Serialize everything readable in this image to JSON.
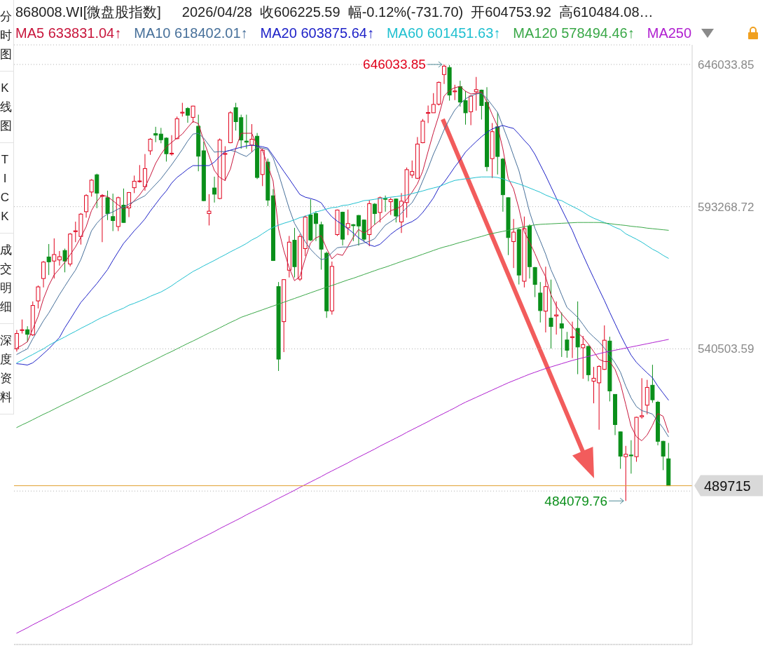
{
  "chart_data": {
    "type": "candlestick",
    "title": "868008.WI[微盘股指数]",
    "subtitle": "2026/04/28  收606225.59  幅-0.12%(-731.70)  开604753.92  高610484.08…",
    "categories": [
      null,
      null,
      null,
      null,
      null,
      null,
      null,
      null,
      null,
      null,
      null,
      null,
      null,
      null,
      null,
      null,
      null,
      null,
      null,
      null,
      null,
      null,
      null,
      null,
      null,
      null,
      null,
      null,
      null,
      null,
      null,
      null,
      null,
      null,
      null,
      null,
      null,
      null,
      null,
      null,
      null,
      null,
      null,
      null,
      null,
      null,
      null,
      null,
      null,
      null,
      null,
      null,
      null,
      null,
      null,
      null,
      null,
      null,
      null,
      null,
      null,
      null,
      null,
      null,
      null,
      null,
      null,
      null,
      null,
      null,
      null,
      null,
      null,
      null,
      null,
      null,
      null,
      null,
      null,
      null,
      null,
      null,
      null,
      null,
      null,
      null,
      null,
      null,
      null,
      null,
      null,
      null,
      null,
      null,
      null,
      null,
      null,
      null,
      null,
      null,
      null,
      null,
      null,
      null,
      null,
      null,
      null,
      null,
      null,
      null,
      null,
      null,
      null,
      null,
      null,
      null,
      null,
      null,
      null,
      null,
      null,
      null,
      null
    ],
    "ohlc": [
      [
        540500,
        547500,
        539500,
        546200
      ],
      [
        547300,
        551400,
        546200,
        547600
      ],
      [
        547600,
        548900,
        543100,
        545900
      ],
      [
        545700,
        558100,
        545300,
        556600
      ],
      [
        558300,
        564000,
        555500,
        563500
      ],
      [
        566600,
        573100,
        563300,
        572700
      ],
      [
        574600,
        579400,
        567900,
        572800
      ],
      [
        573100,
        581500,
        566600,
        575500
      ],
      [
        573500,
        576800,
        571400,
        574700
      ],
      [
        577000,
        577700,
        568900,
        573100
      ],
      [
        572000,
        583500,
        571100,
        583100
      ],
      [
        584000,
        587700,
        580100,
        584300
      ],
      [
        582200,
        590900,
        579200,
        590500
      ],
      [
        591400,
        597900,
        589200,
        597400
      ],
      [
        598700,
        603500,
        597000,
        603100
      ],
      [
        605100,
        605500,
        592700,
        598300
      ],
      [
        597100,
        597900,
        580100,
        597400
      ],
      [
        596600,
        599200,
        588300,
        590700
      ],
      [
        589600,
        598100,
        584200,
        588100
      ],
      [
        585900,
        597000,
        584200,
        596600
      ],
      [
        593800,
        600000,
        587300,
        587400
      ],
      [
        592800,
        598700,
        589400,
        598500
      ],
      [
        600300,
        604800,
        598300,
        602700
      ],
      [
        602600,
        608700,
        602200,
        602800
      ],
      [
        600700,
        612800,
        599200,
        607400
      ],
      [
        614000,
        618700,
        612500,
        618300
      ],
      [
        620400,
        622900,
        617200,
        619800
      ],
      [
        620200,
        622500,
        616800,
        618100
      ],
      [
        618700,
        619000,
        610000,
        612900
      ],
      [
        612800,
        619800,
        612200,
        613100
      ],
      [
        618500,
        626700,
        618300,
        625900
      ],
      [
        628000,
        631800,
        626700,
        628300
      ],
      [
        629700,
        630200,
        624400,
        627200
      ],
      [
        626400,
        630700,
        624400,
        630600
      ],
      [
        623100,
        627400,
        606400,
        612000
      ],
      [
        614000,
        617400,
        595300,
        595500
      ],
      [
        590700,
        597900,
        586300,
        591600
      ],
      [
        600200,
        604400,
        594800,
        597900
      ],
      [
        596300,
        618600,
        596000,
        618000
      ],
      [
        612700,
        615700,
        602800,
        613000
      ],
      [
        617000,
        628700,
        616800,
        628100
      ],
      [
        630000,
        631800,
        621500,
        624800
      ],
      [
        626300,
        627400,
        614800,
        618000
      ],
      [
        617600,
        627400,
        614800,
        617200
      ],
      [
        616100,
        623900,
        613500,
        618300
      ],
      [
        619400,
        620600,
        603500,
        604100
      ],
      [
        605200,
        614800,
        600900,
        614200
      ],
      [
        609800,
        611100,
        593500,
        595700
      ],
      [
        597300,
        599800,
        573100,
        573300
      ],
      [
        563600,
        565300,
        532300,
        536700
      ],
      [
        550600,
        566300,
        539300,
        566200
      ],
      [
        569700,
        582400,
        567000,
        580100
      ],
      [
        580800,
        585400,
        567000,
        571000
      ],
      [
        566400,
        583100,
        565700,
        582200
      ],
      [
        577700,
        590000,
        574900,
        589400
      ],
      [
        590200,
        596000,
        580500,
        580900
      ],
      [
        590700,
        591600,
        580500,
        587000
      ],
      [
        586600,
        587700,
        569900,
        577500
      ],
      [
        576000,
        576600,
        552000,
        554600
      ],
      [
        554600,
        572900,
        553200,
        571100
      ],
      [
        582900,
        592200,
        582400,
        592000
      ],
      [
        591200,
        591400,
        578900,
        581200
      ],
      [
        585400,
        592200,
        582700,
        587000
      ],
      [
        586600,
        586800,
        580500,
        586200
      ],
      [
        590000,
        590200,
        578800,
        586100
      ],
      [
        588300,
        588500,
        580300,
        581200
      ],
      [
        582900,
        595700,
        578600,
        594400
      ],
      [
        594200,
        594600,
        586600,
        590700
      ],
      [
        591100,
        597000,
        587400,
        596600
      ],
      [
        596300,
        597400,
        591400,
        596000
      ],
      [
        595100,
        596600,
        590200,
        595900
      ],
      [
        596100,
        596300,
        587400,
        589800
      ],
      [
        587600,
        598300,
        583500,
        595300
      ],
      [
        594800,
        607800,
        589200,
        607000
      ],
      [
        605000,
        610400,
        603900,
        606300
      ],
      [
        603800,
        619100,
        603500,
        616500
      ],
      [
        617000,
        625800,
        616800,
        625000
      ],
      [
        627900,
        630800,
        624300,
        628200
      ],
      [
        628100,
        635400,
        628100,
        631200
      ],
      [
        631300,
        639700,
        630800,
        639400
      ],
      [
        642300,
        646033.85,
        638800,
        645400
      ],
      [
        644900,
        645800,
        632600,
        634700
      ],
      [
        635900,
        638500,
        632800,
        636200
      ],
      [
        637800,
        640000,
        630400,
        632100
      ],
      [
        632600,
        636200,
        623700,
        628100
      ],
      [
        628500,
        634700,
        623500,
        634300
      ],
      [
        635900,
        641400,
        628900,
        636700
      ],
      [
        636500,
        636700,
        625600,
        630800
      ],
      [
        632000,
        637600,
        606400,
        608100
      ],
      [
        611100,
        624300,
        603900,
        621100
      ],
      [
        622900,
        628200,
        605200,
        611900
      ],
      [
        610900,
        611300,
        591400,
        597700
      ],
      [
        596600,
        596700,
        575300,
        581800
      ],
      [
        580300,
        588700,
        570500,
        583800
      ],
      [
        584800,
        585300,
        564400,
        567900
      ],
      [
        565600,
        589600,
        563300,
        585100
      ],
      [
        586100,
        586700,
        566600,
        571000
      ],
      [
        570700,
        570900,
        559700,
        564400
      ],
      [
        561200,
        565300,
        550300,
        554700
      ],
      [
        554500,
        571000,
        546600,
        563600
      ],
      [
        551900,
        566200,
        540600,
        548800
      ],
      [
        552700,
        558100,
        545800,
        553100
      ],
      [
        549800,
        554000,
        537500,
        548200
      ],
      [
        543800,
        546800,
        537200,
        540000
      ],
      [
        544700,
        550600,
        537100,
        545000
      ],
      [
        548100,
        558100,
        531100,
        541200
      ],
      [
        540900,
        545300,
        529400,
        542100
      ],
      [
        541400,
        541800,
        528500,
        530900
      ],
      [
        528500,
        533800,
        520300,
        529600
      ],
      [
        527900,
        534400,
        510500,
        534000
      ],
      [
        532900,
        549200,
        532700,
        543700
      ],
      [
        543400,
        545000,
        521000,
        524900
      ],
      [
        523600,
        523700,
        508500,
        512400
      ],
      [
        509700,
        509800,
        496000,
        500700
      ],
      [
        500500,
        504500,
        484079.76,
        501400
      ],
      [
        501100,
        506600,
        494200,
        500800
      ],
      [
        500500,
        515300,
        498600,
        515100
      ],
      [
        515300,
        529600,
        514600,
        515700
      ],
      [
        519600,
        529000,
        516200,
        526200
      ],
      [
        527000,
        534600,
        520500,
        521600
      ],
      [
        520700,
        521200,
        504700,
        506200
      ],
      [
        506200,
        506400,
        495500,
        500700
      ],
      [
        499700,
        505600,
        489715,
        489715
      ]
    ],
    "colors": [
      "#e0001b",
      "#e0001b",
      "#0a8f1a",
      "#e0001b",
      "#e0001b",
      "#e0001b",
      "#0a8f1a",
      "#e0001b",
      "#e0001b",
      "#0a8f1a",
      "#e0001b",
      "#e0001b",
      "#e0001b",
      "#e0001b",
      "#e0001b",
      "#0a8f1a",
      "#e0001b",
      "#0a8f1a",
      "#0a8f1a",
      "#e0001b",
      "#0a8f1a",
      "#e0001b",
      "#e0001b",
      "#e0001b",
      "#e0001b",
      "#e0001b",
      "#0a8f1a",
      "#0a8f1a",
      "#0a8f1a",
      "#e0001b",
      "#e0001b",
      "#e0001b",
      "#0a8f1a",
      "#e0001b",
      "#0a8f1a",
      "#0a8f1a",
      "#e0001b",
      "#0a8f1a",
      "#e0001b",
      "#e0001b",
      "#e0001b",
      "#0a8f1a",
      "#0a8f1a",
      "#0a8f1a",
      "#e0001b",
      "#0a8f1a",
      "#e0001b",
      "#0a8f1a",
      "#0a8f1a",
      "#0a8f1a",
      "#e0001b",
      "#e0001b",
      "#0a8f1a",
      "#e0001b",
      "#e0001b",
      "#0a8f1a",
      "#0a8f1a",
      "#0a8f1a",
      "#0a8f1a",
      "#e0001b",
      "#e0001b",
      "#0a8f1a",
      "#e0001b",
      "#0a8f1a",
      "#0a8f1a",
      "#0a8f1a",
      "#e0001b",
      "#0a8f1a",
      "#e0001b",
      "#0a8f1a",
      "#e0001b",
      "#0a8f1a",
      "#e0001b",
      "#e0001b",
      "#e0001b",
      "#e0001b",
      "#e0001b",
      "#e0001b",
      "#e0001b",
      "#e0001b",
      "#e0001b",
      "#0a8f1a",
      "#e0001b",
      "#0a8f1a",
      "#0a8f1a",
      "#e0001b",
      "#e0001b",
      "#0a8f1a",
      "#0a8f1a",
      "#e0001b",
      "#0a8f1a",
      "#0a8f1a",
      "#0a8f1a",
      "#e0001b",
      "#0a8f1a",
      "#e0001b",
      "#0a8f1a",
      "#0a8f1a",
      "#0a8f1a",
      "#e0001b",
      "#0a8f1a",
      "#e0001b",
      "#0a8f1a",
      "#0a8f1a",
      "#e0001b",
      "#0a8f1a",
      "#e0001b",
      "#0a8f1a",
      "#e0001b",
      "#e0001b",
      "#e0001b",
      "#0a8f1a",
      "#0a8f1a",
      "#0a8f1a",
      "#e0001b",
      "#0a8f1a",
      "#e0001b",
      "#e0001b",
      "#e0001b",
      "#0a8f1a",
      "#0a8f1a",
      "#0a8f1a",
      "#0a8f1a"
    ],
    "series": [
      {
        "name": "MA5 633831.04↑",
        "type": "line",
        "color": "#c8163c",
        "values": [
          540800,
          541800,
          543100,
          547800,
          552500,
          559000,
          564000,
          567900,
          570200,
          572600,
          575400,
          578300,
          581900,
          585800,
          591800,
          595200,
          597600,
          597000,
          595500,
          593900,
          592400,
          593400,
          595500,
          597600,
          600400,
          604600,
          609300,
          612700,
          615500,
          617100,
          618700,
          620200,
          622600,
          624900,
          624100,
          617900,
          612200,
          606700,
          604100,
          603000,
          607200,
          614800,
          620500,
          620500,
          620500,
          616100,
          614200,
          608500,
          602800,
          585100,
          577000,
          570700,
          565800,
          567300,
          573900,
          579800,
          581700,
          582500,
          577800,
          573900,
          575700,
          575200,
          578500,
          581900,
          584800,
          583500,
          584800,
          586600,
          588200,
          590000,
          591800,
          592400,
          593400,
          596000,
          598600,
          601700,
          606400,
          613700,
          620700,
          627000,
          634300,
          636400,
          637400,
          637900,
          636100,
          635100,
          635300,
          635900,
          632200,
          627500,
          623100,
          614800,
          603800,
          599900,
          592600,
          584000,
          580100,
          575900,
          571200,
          567300,
          560600,
          556400,
          553500,
          551200,
          548800,
          546500,
          544700,
          542300,
          539500,
          536600,
          535800,
          535800,
          532900,
          527700,
          519900,
          511800,
          507900,
          506400,
          508500,
          512100,
          516500,
          515500,
          509500
        ]
      },
      {
        "name": "MA10 618402.01↑",
        "type": "line",
        "color": "#47709a",
        "values": [
          538400,
          539500,
          540500,
          544200,
          547500,
          550900,
          553800,
          557200,
          560600,
          563700,
          566800,
          569700,
          573600,
          578800,
          584300,
          587100,
          589200,
          590500,
          591300,
          592400,
          593100,
          594200,
          595200,
          596300,
          597300,
          599400,
          601500,
          603600,
          606200,
          608800,
          611600,
          614500,
          617600,
          620200,
          620500,
          618700,
          616100,
          613500,
          613700,
          613700,
          614200,
          613700,
          612700,
          611900,
          613500,
          615300,
          615000,
          614500,
          611400,
          605600,
          599100,
          592600,
          587100,
          583700,
          580300,
          577500,
          575400,
          573600,
          574100,
          576200,
          578000,
          578300,
          578300,
          578800,
          579300,
          579800,
          580400,
          581400,
          584000,
          586400,
          587700,
          589000,
          590800,
          592900,
          594700,
          598100,
          602800,
          607500,
          612700,
          617100,
          621800,
          625700,
          629100,
          631400,
          633300,
          634300,
          635100,
          635300,
          633500,
          630900,
          628300,
          623100,
          617900,
          612200,
          606700,
          599100,
          591300,
          585300,
          580600,
          575700,
          569900,
          565500,
          560600,
          555900,
          554100,
          552200,
          549600,
          546800,
          544900,
          543100,
          540800,
          538200,
          535300,
          531900,
          526700,
          522300,
          519100,
          517600,
          517000,
          516300,
          513700,
          511100,
          507900
        ]
      },
      {
        "name": "MA20 603875.64↑",
        "type": "line",
        "color": "#1e22c8",
        "values": [
          535000,
          534800,
          534500,
          535300,
          536900,
          538700,
          540500,
          542600,
          544700,
          548300,
          551400,
          554600,
          557700,
          560000,
          562400,
          564700,
          567300,
          569900,
          573300,
          576500,
          579600,
          581900,
          584300,
          586400,
          588700,
          591600,
          594200,
          596800,
          599100,
          602000,
          604100,
          605600,
          607200,
          608500,
          608500,
          608500,
          608500,
          609800,
          611900,
          613700,
          614200,
          614800,
          615300,
          615800,
          616100,
          615800,
          615500,
          615000,
          612200,
          609300,
          606400,
          603600,
          600700,
          597800,
          596800,
          596300,
          595700,
          594700,
          591800,
          589500,
          587900,
          586600,
          585100,
          583500,
          581700,
          580400,
          579100,
          578500,
          579300,
          581100,
          583000,
          584500,
          585800,
          586900,
          587700,
          589000,
          591100,
          593700,
          596500,
          600200,
          602300,
          605100,
          608000,
          610600,
          613500,
          615500,
          617400,
          619200,
          620800,
          622100,
          622800,
          623400,
          622800,
          622300,
          620200,
          617900,
          615800,
          612700,
          608800,
          604900,
          600700,
          596500,
          592400,
          588400,
          584500,
          579800,
          575400,
          571000,
          566800,
          562600,
          558500,
          554100,
          549900,
          545700,
          541800,
          538200,
          535500,
          533500,
          531600,
          529800,
          526700,
          524100,
          521500
        ]
      },
      {
        "name": "MA60 601451.63↑",
        "type": "line",
        "color": "#20c0d0",
        "values": [
          535300,
          536300,
          537400,
          538400,
          539500,
          540500,
          541800,
          542900,
          543900,
          544900,
          546000,
          547000,
          548100,
          549100,
          550100,
          551200,
          552200,
          553000,
          554000,
          554800,
          555600,
          556700,
          557400,
          558200,
          559000,
          560000,
          560800,
          561600,
          562700,
          563900,
          565300,
          566600,
          567900,
          569200,
          570200,
          571300,
          572300,
          573300,
          574400,
          575400,
          576500,
          577500,
          578500,
          579600,
          580900,
          581900,
          583200,
          584500,
          585600,
          586400,
          587100,
          587700,
          588400,
          589200,
          589700,
          590500,
          591300,
          591800,
          592400,
          592900,
          593100,
          593700,
          593900,
          594400,
          594900,
          595500,
          595700,
          596000,
          596300,
          596500,
          596800,
          597000,
          597300,
          597600,
          598100,
          598600,
          599100,
          599700,
          600200,
          600700,
          601500,
          602300,
          603000,
          603300,
          603600,
          603800,
          604100,
          604300,
          604300,
          604300,
          604100,
          603600,
          602800,
          602300,
          601700,
          601000,
          600200,
          599400,
          598600,
          597600,
          596800,
          596000,
          595500,
          594400,
          593400,
          592400,
          591300,
          590000,
          589000,
          588200,
          587400,
          586600,
          585600,
          584800,
          583200,
          582200,
          581200,
          580100,
          578800,
          577500,
          576500,
          575200,
          574100
        ]
      },
      {
        "name": "MA120 578494.46↑",
        "type": "line",
        "color": "#3aa848",
        "values": [
          511300,
          512300,
          513200,
          514200,
          515200,
          516200,
          517100,
          518100,
          519100,
          520100,
          521000,
          522000,
          523000,
          524000,
          524900,
          525900,
          526900,
          527800,
          528800,
          529800,
          530800,
          531700,
          532700,
          533700,
          534700,
          535600,
          536600,
          537600,
          538600,
          539500,
          540500,
          541500,
          542500,
          543400,
          544400,
          545400,
          546400,
          547300,
          548300,
          549300,
          550300,
          551200,
          552200,
          552900,
          553600,
          554300,
          555000,
          555700,
          556400,
          557100,
          557800,
          558500,
          559200,
          559900,
          560600,
          561300,
          562000,
          562700,
          563400,
          564000,
          564700,
          565400,
          566100,
          566700,
          567400,
          568100,
          568800,
          569500,
          570200,
          570800,
          571500,
          572200,
          572900,
          573600,
          574200,
          574900,
          575600,
          576300,
          577000,
          577700,
          578300,
          578800,
          579400,
          580000,
          580500,
          581100,
          581700,
          582200,
          582800,
          583300,
          583700,
          584100,
          584500,
          585000,
          585400,
          585800,
          586200,
          586500,
          586700,
          586800,
          586900,
          587000,
          587100,
          587200,
          587300,
          587400,
          587400,
          587400,
          587400,
          587400,
          587200,
          587000,
          586700,
          586500,
          586300,
          586000,
          585800,
          585600,
          585300,
          585100,
          584900,
          584700,
          584500
        ]
      },
      {
        "name": "MA250",
        "type": "line",
        "color": "#b020d0",
        "values": [
          435000,
          436000,
          437000,
          438100,
          439100,
          440100,
          441100,
          442100,
          443200,
          444200,
          445200,
          446200,
          447200,
          448300,
          449300,
          450300,
          451300,
          452300,
          453400,
          454400,
          455400,
          456400,
          457400,
          458500,
          459500,
          460500,
          461500,
          462500,
          463600,
          464600,
          465600,
          466600,
          467600,
          468700,
          469700,
          470700,
          471700,
          472700,
          473800,
          474800,
          475800,
          476800,
          477800,
          478900,
          479900,
          480900,
          481900,
          482900,
          484000,
          485000,
          486000,
          487000,
          488000,
          489100,
          490100,
          491100,
          492100,
          493100,
          494200,
          495200,
          496200,
          497200,
          498200,
          499300,
          500300,
          501300,
          502300,
          503300,
          504400,
          505400,
          506400,
          507400,
          508400,
          509500,
          510500,
          511500,
          512500,
          513500,
          514600,
          515600,
          516600,
          517600,
          518600,
          519700,
          520700,
          521600,
          522500,
          523400,
          524300,
          525200,
          526100,
          527000,
          527900,
          528700,
          529500,
          530300,
          531100,
          531800,
          532500,
          533200,
          533800,
          534400,
          535000,
          535600,
          536200,
          536700,
          537200,
          537700,
          538200,
          538700,
          539200,
          539600,
          540000,
          540400,
          540800,
          541200,
          541600,
          542000,
          542400,
          542800,
          543200,
          543600,
          544000
        ]
      }
    ],
    "ylim": [
      430800,
      653300
    ],
    "yticks": [
      646033.85,
      593268.72,
      540503.59,
      {
        "value": 487738.46,
        "label": null
      }
    ],
    "grid": "y",
    "legend": "top",
    "tick_labels": "y",
    "ref_lines": [
      {
        "axis": "y",
        "value": 489715,
        "label": "489715",
        "color": "#e0a030"
      }
    ],
    "annotations": [
      "646033.85",
      "484079.76",
      "分时图",
      "K线图",
      "TICK",
      "成交明细",
      "深度资料"
    ]
  }
}
